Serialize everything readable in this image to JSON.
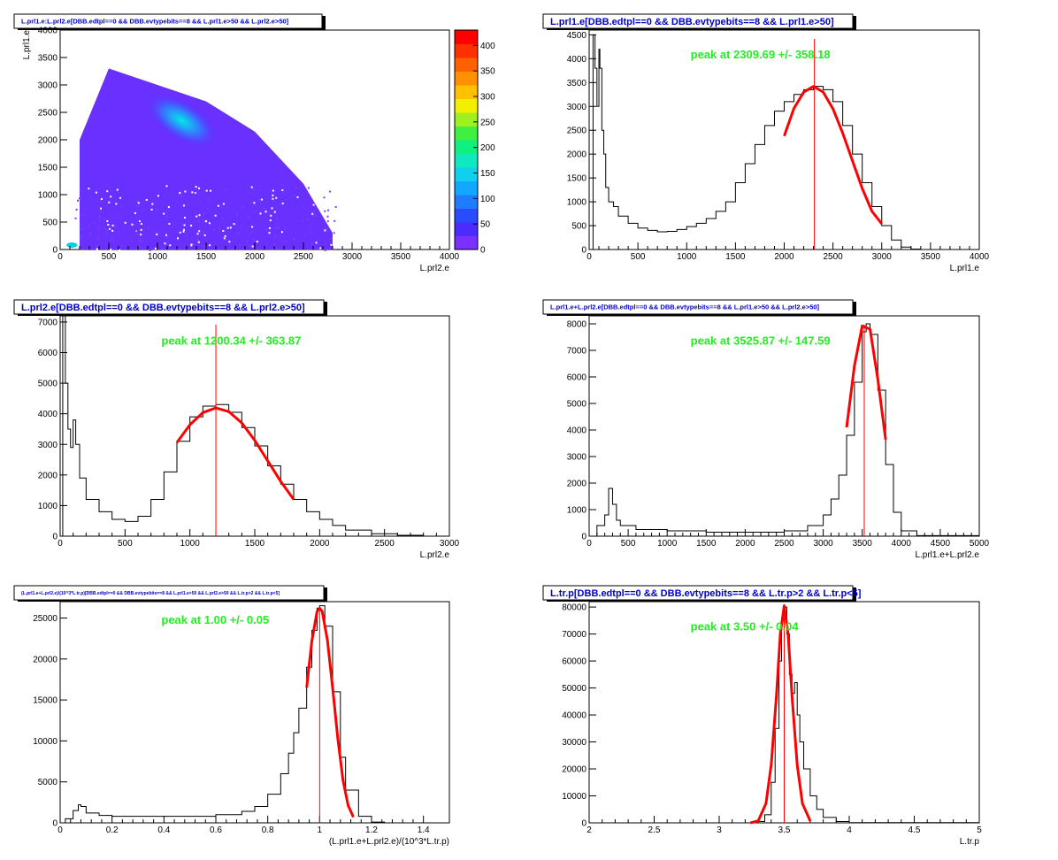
{
  "chart_data": [
    {
      "type": "heatmap",
      "title": "L.prl1.e:L.prl2.e[DBB.edtpl==0 && DBB.evtypebits==8 && L.prl1.e>50 && L.prl2.e>50]",
      "xlabel": "L.prl2.e",
      "ylabel": "L.prl1.e",
      "xlim": [
        0,
        4000
      ],
      "ylim": [
        0,
        4000
      ],
      "xticks": [
        0,
        500,
        1000,
        1500,
        2000,
        2500,
        3000,
        3500,
        4000
      ],
      "yticks": [
        0,
        500,
        1000,
        1500,
        2000,
        2500,
        3000,
        3500,
        4000
      ],
      "colorbar": {
        "min": 0,
        "max": 430,
        "ticks": [
          0,
          50,
          100,
          150,
          200,
          250,
          300,
          350,
          400
        ]
      },
      "density_ridge": {
        "x": [
          200,
          500,
          1000,
          1500,
          2000,
          2500,
          2800
        ],
        "y_upper": [
          2000,
          3300,
          3000,
          2700,
          2150,
          1200,
          300
        ],
        "y_lower": [
          0,
          0,
          0,
          0,
          0,
          0,
          0
        ]
      },
      "hotspot": {
        "x": 1250,
        "y": 2350
      },
      "grid": false
    },
    {
      "type": "line",
      "title": "L.prl1.e[DBB.edtpl==0 && DBB.evtypebits==8 && L.prl1.e>50]",
      "xlabel": "L.prl1.e",
      "ylabel": "",
      "xlim": [
        0,
        4000
      ],
      "ylim": [
        0,
        4600
      ],
      "xticks": [
        0,
        500,
        1000,
        1500,
        2000,
        2500,
        3000,
        3500,
        4000
      ],
      "yticks": [
        0,
        500,
        1000,
        1500,
        2000,
        2500,
        3000,
        3500,
        4000,
        4500
      ],
      "annotation": "peak at 2309.69 +/- 358.18",
      "peak": 2309.69,
      "series": [
        {
          "x": [
            0,
            40,
            60,
            80,
            100,
            110,
            130,
            150,
            170,
            200,
            250,
            300,
            400,
            500,
            600,
            700,
            800,
            900,
            1000,
            1100,
            1200,
            1300,
            1400,
            1500,
            1600,
            1700,
            1800,
            1900,
            2000,
            2100,
            2200,
            2300,
            2400,
            2500,
            2600,
            2700,
            2800,
            2900,
            3000,
            3100,
            3200,
            3300,
            3400,
            3500,
            4000
          ],
          "y": [
            0,
            4500,
            3800,
            3000,
            4200,
            3800,
            2500,
            2000,
            1300,
            1000,
            900,
            700,
            550,
            450,
            400,
            370,
            380,
            420,
            480,
            550,
            650,
            800,
            1000,
            1400,
            1800,
            2200,
            2600,
            2900,
            3100,
            3250,
            3350,
            3420,
            3350,
            3100,
            2600,
            2000,
            1400,
            900,
            500,
            200,
            50,
            10,
            0,
            0,
            0
          ]
        },
        {
          "x": [
            2000,
            2100,
            2200,
            2300,
            2400,
            2500,
            2600,
            2700,
            2800,
            2900,
            3000
          ],
          "y": [
            2380,
            2960,
            3300,
            3420,
            3300,
            2950,
            2440,
            1860,
            1280,
            800,
            540
          ]
        }
      ],
      "grid": false
    },
    {
      "type": "line",
      "title": "L.prl2.e[DBB.edtpl==0 && DBB.evtypebits==8 && L.prl2.e>50]",
      "xlabel": "L.prl2.e",
      "ylabel": "",
      "xlim": [
        0,
        3000
      ],
      "ylim": [
        0,
        7200
      ],
      "xticks": [
        0,
        500,
        1000,
        1500,
        2000,
        2500,
        3000
      ],
      "yticks": [
        0,
        1000,
        2000,
        3000,
        4000,
        5000,
        6000,
        7000
      ],
      "annotation": "peak at 1200.34 +/- 363.87",
      "peak": 1200.34,
      "series": [
        {
          "x": [
            0,
            20,
            40,
            60,
            80,
            100,
            120,
            150,
            200,
            300,
            400,
            500,
            600,
            700,
            800,
            900,
            1000,
            1100,
            1200,
            1300,
            1400,
            1500,
            1600,
            1700,
            1800,
            1900,
            2000,
            2100,
            2200,
            2400,
            2600,
            2800
          ],
          "y": [
            0,
            7200,
            5000,
            3500,
            2900,
            3800,
            3000,
            1900,
            1200,
            800,
            550,
            480,
            650,
            1200,
            2100,
            3100,
            3900,
            4250,
            4300,
            4050,
            3550,
            2950,
            2300,
            1700,
            1200,
            800,
            550,
            350,
            200,
            80,
            30,
            10
          ]
        },
        {
          "x": [
            900,
            1000,
            1100,
            1200,
            1300,
            1400,
            1500,
            1600,
            1700,
            1800
          ],
          "y": [
            3060,
            3640,
            4040,
            4190,
            4070,
            3700,
            3130,
            2460,
            1790,
            1200
          ]
        }
      ],
      "grid": false
    },
    {
      "type": "line",
      "title": "L.prl1.e+L.prl2.e[DBB.edtpl==0 && DBB.evtypebits==8 && L.prl1.e>50 && L.prl2.e>50]",
      "xlabel": "L.prl1.e+L.prl2.e",
      "ylabel": "",
      "xlim": [
        0,
        5000
      ],
      "ylim": [
        0,
        8300
      ],
      "xticks": [
        0,
        500,
        1000,
        1500,
        2000,
        2500,
        3000,
        3500,
        4000,
        4500,
        5000
      ],
      "yticks": [
        0,
        1000,
        2000,
        3000,
        4000,
        5000,
        6000,
        7000,
        8000
      ],
      "annotation": "peak at 3525.87 +/- 147.59",
      "peak": 3525.87,
      "series": [
        {
          "x": [
            0,
            100,
            200,
            250,
            300,
            350,
            400,
            600,
            1000,
            1500,
            2000,
            2500,
            2800,
            3000,
            3100,
            3200,
            3300,
            3400,
            3500,
            3550,
            3600,
            3700,
            3800,
            3900,
            4000,
            4200,
            5000
          ],
          "y": [
            0,
            400,
            800,
            1800,
            1200,
            600,
            400,
            250,
            200,
            150,
            150,
            200,
            400,
            800,
            1400,
            2300,
            3800,
            5800,
            7700,
            8000,
            7600,
            5500,
            2700,
            900,
            200,
            20,
            0
          ]
        },
        {
          "x": [
            3300,
            3400,
            3500,
            3600,
            3700,
            3800
          ],
          "y": [
            4100,
            6420,
            7920,
            7800,
            5910,
            3640
          ]
        }
      ],
      "grid": false
    },
    {
      "type": "line",
      "title": "(L.prl1.e+L.prl2.e)/(10^3*L.tr.p)[DBB.edtpl==0 && DBB.evtypebits==8 && L.prl1.e>50 && L.prl2.e>50 && L.tr.p>2 && L.tr.p<5]",
      "xlabel": "(L.prl1.e+L.prl2.e)/(10^3*L.tr.p)",
      "ylabel": "",
      "xlim": [
        0,
        1.5
      ],
      "ylim": [
        0,
        27000
      ],
      "xticks": [
        0,
        0.2,
        0.4,
        0.6,
        0.8,
        1,
        1.2,
        1.4
      ],
      "yticks": [
        0,
        5000,
        10000,
        15000,
        20000,
        25000
      ],
      "annotation": "peak at 1.00 +/- 0.05",
      "peak": 1.0,
      "series": [
        {
          "x": [
            0,
            0.02,
            0.05,
            0.07,
            0.08,
            0.1,
            0.15,
            0.2,
            0.4,
            0.6,
            0.7,
            0.75,
            0.8,
            0.85,
            0.88,
            0.9,
            0.92,
            0.95,
            0.97,
            0.99,
            1.0,
            1.02,
            1.05,
            1.08,
            1.1,
            1.15,
            1.2,
            1.25,
            1.5
          ],
          "y": [
            0,
            500,
            1500,
            2200,
            2000,
            1200,
            900,
            800,
            800,
            1000,
            1400,
            2000,
            3500,
            6000,
            8500,
            11000,
            14000,
            19000,
            23500,
            26200,
            26500,
            24000,
            16000,
            8000,
            4000,
            800,
            100,
            0,
            0
          ]
        },
        {
          "x": [
            0.95,
            0.97,
            0.99,
            1.0,
            1.01,
            1.03,
            1.05,
            1.07,
            1.09,
            1.11,
            1.13
          ],
          "y": [
            16500,
            22200,
            25800,
            26200,
            25800,
            22300,
            16500,
            10300,
            5200,
            2100,
            700
          ]
        }
      ],
      "grid": false
    },
    {
      "type": "line",
      "title": "L.tr.p[DBB.edtpl==0 && DBB.evtypebits==8 && L.tr.p>2 && L.tr.p<5]",
      "xlabel": "L.tr.p",
      "ylabel": "",
      "xlim": [
        2,
        5
      ],
      "ylim": [
        0,
        82000
      ],
      "xticks": [
        2,
        2.5,
        3,
        3.5,
        4,
        4.5,
        5
      ],
      "yticks": [
        0,
        10000,
        20000,
        30000,
        40000,
        50000,
        60000,
        70000,
        80000
      ],
      "annotation": "peak at 3.50 +/- 0.04",
      "peak": 3.5,
      "series": [
        {
          "x": [
            2,
            3.2,
            3.3,
            3.35,
            3.4,
            3.43,
            3.46,
            3.48,
            3.5,
            3.52,
            3.54,
            3.56,
            3.58,
            3.6,
            3.62,
            3.65,
            3.7,
            3.75,
            3.8,
            3.9,
            4.0,
            5
          ],
          "y": [
            0,
            0,
            500,
            3000,
            15000,
            35000,
            60000,
            75000,
            80000,
            70000,
            55000,
            48000,
            52000,
            40000,
            30000,
            20000,
            10000,
            5000,
            2000,
            500,
            100,
            0
          ]
        },
        {
          "x": [
            3.24,
            3.3,
            3.36,
            3.4,
            3.44,
            3.47,
            3.5,
            3.53,
            3.56,
            3.6,
            3.64,
            3.7
          ],
          "y": [
            0,
            700,
            7200,
            21500,
            47000,
            70000,
            80500,
            70000,
            47000,
            21500,
            7200,
            700
          ]
        }
      ],
      "grid": false
    }
  ]
}
